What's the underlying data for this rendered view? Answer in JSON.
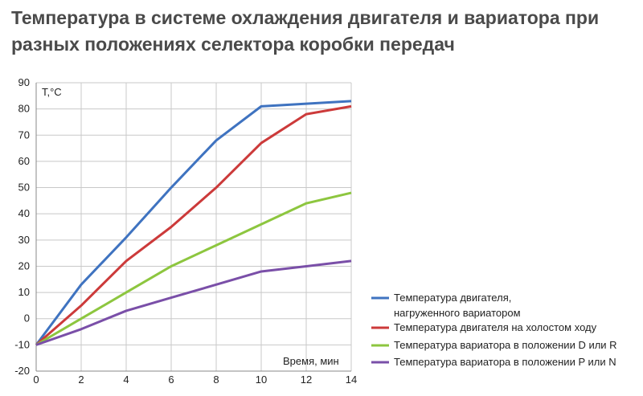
{
  "title_line1": "Температура в системе охлаждения двигателя и вариатора при",
  "title_line2": "разных положениях селектора коробки передач",
  "colors": {
    "engine_loaded": "#3f73c0",
    "engine_idle": "#cc3a3a",
    "variator_dr": "#8dc63f",
    "variator_pn": "#7a4fa8"
  },
  "chart_data": {
    "type": "line",
    "ylabel": "T,°C",
    "xlabel": "Время, мин",
    "xlim": [
      0,
      14
    ],
    "ylim": [
      -20,
      90
    ],
    "x_ticks": [
      "0",
      "2",
      "4",
      "6",
      "8",
      "10",
      "12",
      "14"
    ],
    "y_ticks": [
      "90",
      "80",
      "70",
      "60",
      "50",
      "40",
      "30",
      "20",
      "10",
      "0",
      "-10",
      "-20"
    ],
    "grid": true,
    "legend_position": "bottom-right",
    "x": [
      0,
      2,
      4,
      6,
      8,
      10,
      12,
      14
    ],
    "series": [
      {
        "name": "Температура двигателя, нагруженного вариатором",
        "name_line1": "Температура двигателя,",
        "name_line2": "нагруженного вариатором",
        "color": "#3f73c0",
        "values": [
          -10,
          13,
          31,
          50,
          68,
          81,
          82,
          83
        ]
      },
      {
        "name": "Температура двигателя на холостом ходу",
        "color": "#cc3a3a",
        "values": [
          -10,
          5,
          22,
          35,
          50,
          67,
          78,
          81
        ]
      },
      {
        "name": "Температура вариатора в положении D или R",
        "color": "#8dc63f",
        "values": [
          -10,
          0,
          10,
          20,
          28,
          36,
          44,
          48
        ]
      },
      {
        "name": "Температура вариатора в положении P или N",
        "color": "#7a4fa8",
        "values": [
          -10,
          -4,
          3,
          8,
          13,
          18,
          20,
          22
        ]
      }
    ]
  }
}
